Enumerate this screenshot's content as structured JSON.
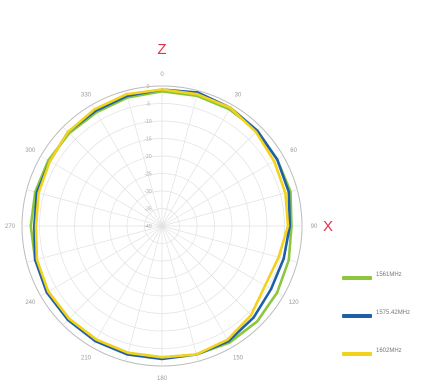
{
  "chart_data": {
    "type": "line",
    "subtype": "polar",
    "theta_ticks": [
      "0",
      "30",
      "60",
      "90",
      "120",
      "150",
      "180",
      "210",
      "240",
      "270",
      "300",
      "330"
    ],
    "r_ticks": [
      "0",
      "-5",
      "-10",
      "-15",
      "-20",
      "-25",
      "-30",
      "-35",
      "-40"
    ],
    "r_range": [
      -40,
      0
    ],
    "axis_labels": {
      "top": "Z",
      "right": "X"
    },
    "legend_position": "right",
    "grid": true,
    "angles": [
      0,
      15,
      30,
      45,
      60,
      75,
      90,
      105,
      120,
      135,
      150,
      165,
      180,
      195,
      210,
      225,
      240,
      255,
      270,
      285,
      300,
      315,
      330,
      345
    ],
    "series": [
      {
        "name": "1561MHz",
        "color": "#8cc63f",
        "values": [
          -1.5,
          -1.5,
          -1.5,
          -1.5,
          -2,
          -2,
          -3,
          -2.5,
          -2,
          -1.5,
          -1.5,
          -2,
          -2.5,
          -2.5,
          -2.5,
          -2.5,
          -2.5,
          -2.5,
          -2.5,
          -2.5,
          -2.5,
          -2.5,
          -2.5,
          -2
        ]
      },
      {
        "name": "1575.42MHz",
        "color": "#1f5fa8",
        "values": [
          -1,
          -0.5,
          -1,
          -1.5,
          -2,
          -2.5,
          -3.5,
          -4,
          -4,
          -3,
          -2,
          -2,
          -2,
          -2,
          -2,
          -2,
          -2,
          -2.5,
          -3.5,
          -3,
          -3,
          -2,
          -2,
          -1.5
        ]
      },
      {
        "name": "1602MHz",
        "color": "#f2d21b",
        "values": [
          -1,
          -1,
          -1,
          -2,
          -3,
          -3.5,
          -4,
          -5.5,
          -6,
          -4,
          -2.5,
          -2,
          -2.5,
          -2.5,
          -2.5,
          -2.5,
          -2.5,
          -3,
          -4,
          -3.5,
          -3,
          -2,
          -1.5,
          -1
        ]
      }
    ]
  },
  "legend": {
    "items": [
      "1561MHz",
      "1575.42MHz",
      "1602MHz"
    ]
  }
}
